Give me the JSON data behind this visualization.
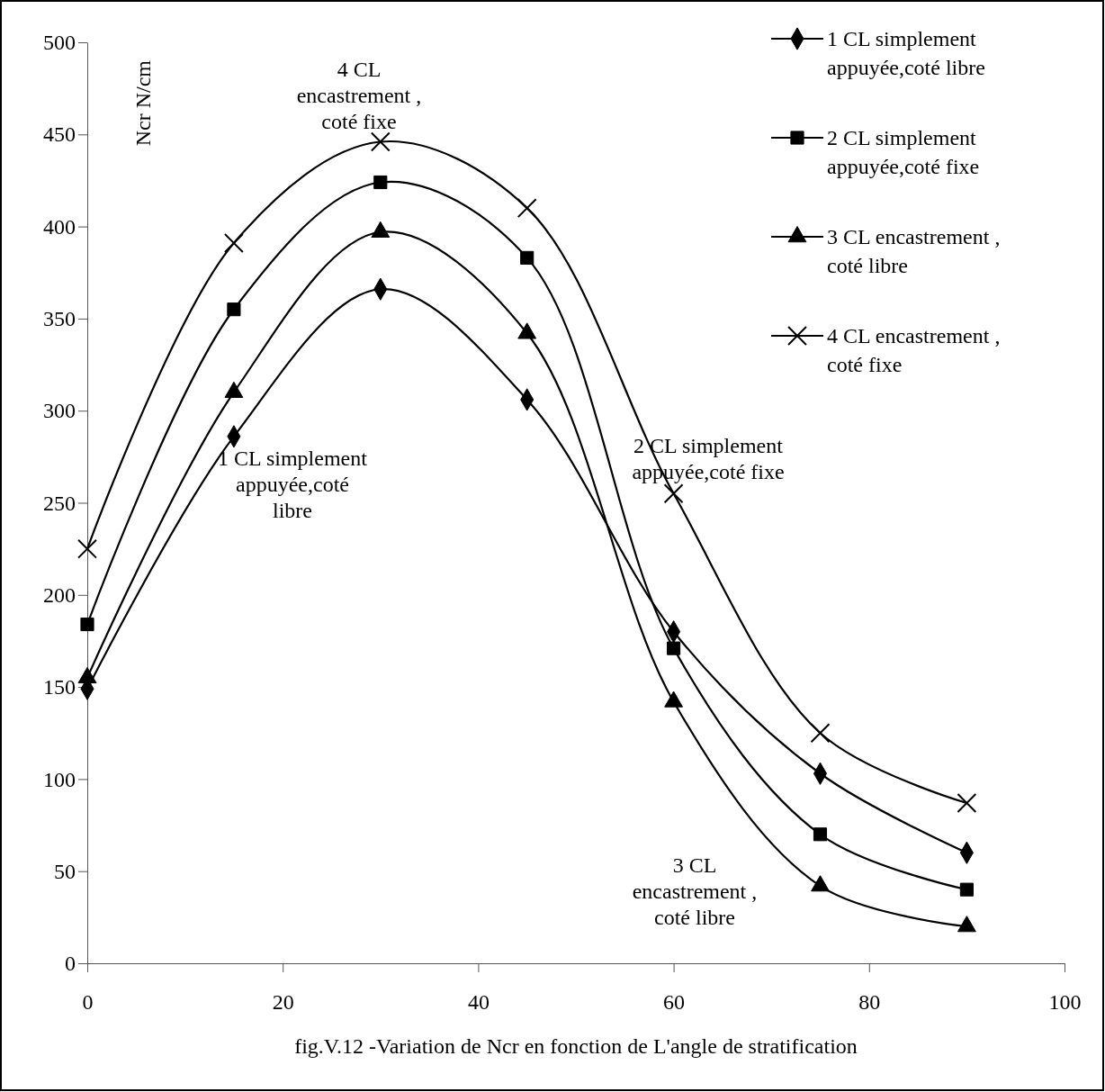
{
  "chart_data": {
    "type": "line",
    "xlabel": "fig.V.12 -Variation de Ncr en fonction de L'angle de stratification",
    "ylabel": "Ncr N/cm",
    "x": [
      0,
      15,
      30,
      45,
      60,
      75,
      90
    ],
    "xlim": [
      0,
      100
    ],
    "xticks": [
      0,
      20,
      40,
      60,
      80,
      100
    ],
    "ylim": [
      0,
      500
    ],
    "yticks": [
      0,
      50,
      100,
      150,
      200,
      250,
      300,
      350,
      400,
      450,
      500
    ],
    "grid": false,
    "legend": "top right",
    "line_style": "solid",
    "series": [
      {
        "name": "1 CL simplement appuyée,coté libre",
        "color": "#000000",
        "marker": "diamond",
        "values": [
          149,
          286,
          366,
          306,
          180,
          103,
          60
        ]
      },
      {
        "name": "2 CL simplement appuyée,coté fixe",
        "color": "#000000",
        "marker": "square",
        "values": [
          184,
          355,
          424,
          383,
          171,
          70,
          40
        ]
      },
      {
        "name": "3 CL encastrement , coté libre",
        "color": "#000000",
        "marker": "triangle",
        "values": [
          155,
          310,
          397,
          342,
          142,
          42,
          20
        ]
      },
      {
        "name": "4 CL encastrement , coté fixe",
        "color": "#000000",
        "marker": "cross",
        "values": [
          225,
          391,
          446,
          410,
          255,
          125,
          87
        ]
      }
    ],
    "annotations": [
      "4 CL\nencastrement ,\ncoté fixe",
      "1 CL simplement\nappuyée,coté\nlibre",
      "2 CL simplement\nappuyée,coté fixe",
      "3 CL\nencastrement ,\ncoté libre"
    ]
  }
}
